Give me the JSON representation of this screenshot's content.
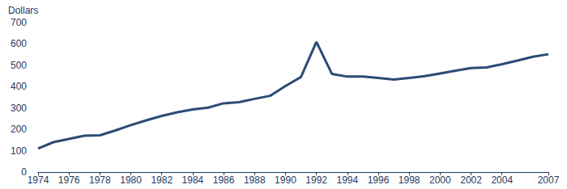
{
  "chart_data": {
    "type": "line",
    "ylabel": "Dollars",
    "x": [
      1974,
      1975,
      1976,
      1977,
      1978,
      1979,
      1980,
      1981,
      1982,
      1983,
      1984,
      1985,
      1986,
      1987,
      1988,
      1989,
      1990,
      1991,
      1992,
      1993,
      1994,
      1995,
      1996,
      1997,
      1998,
      1999,
      2000,
      2001,
      2002,
      2003,
      2004,
      2005,
      2006,
      2007
    ],
    "values": [
      110,
      140,
      155,
      170,
      172,
      195,
      220,
      242,
      263,
      280,
      293,
      302,
      322,
      327,
      343,
      357,
      403,
      445,
      610,
      460,
      447,
      447,
      441,
      433,
      441,
      449,
      462,
      475,
      487,
      490,
      505,
      522,
      540,
      552
    ],
    "color": "#2c4a76",
    "xlim": [
      1974,
      2007
    ],
    "xticks": [
      1974,
      1976,
      1978,
      1980,
      1982,
      1984,
      1986,
      1988,
      1990,
      1992,
      1994,
      1996,
      1998,
      2000,
      2002,
      2004,
      2007
    ],
    "ylim": [
      0,
      700
    ],
    "yticks": [
      0,
      100,
      200,
      300,
      400,
      500,
      600,
      700
    ],
    "grid": false
  }
}
